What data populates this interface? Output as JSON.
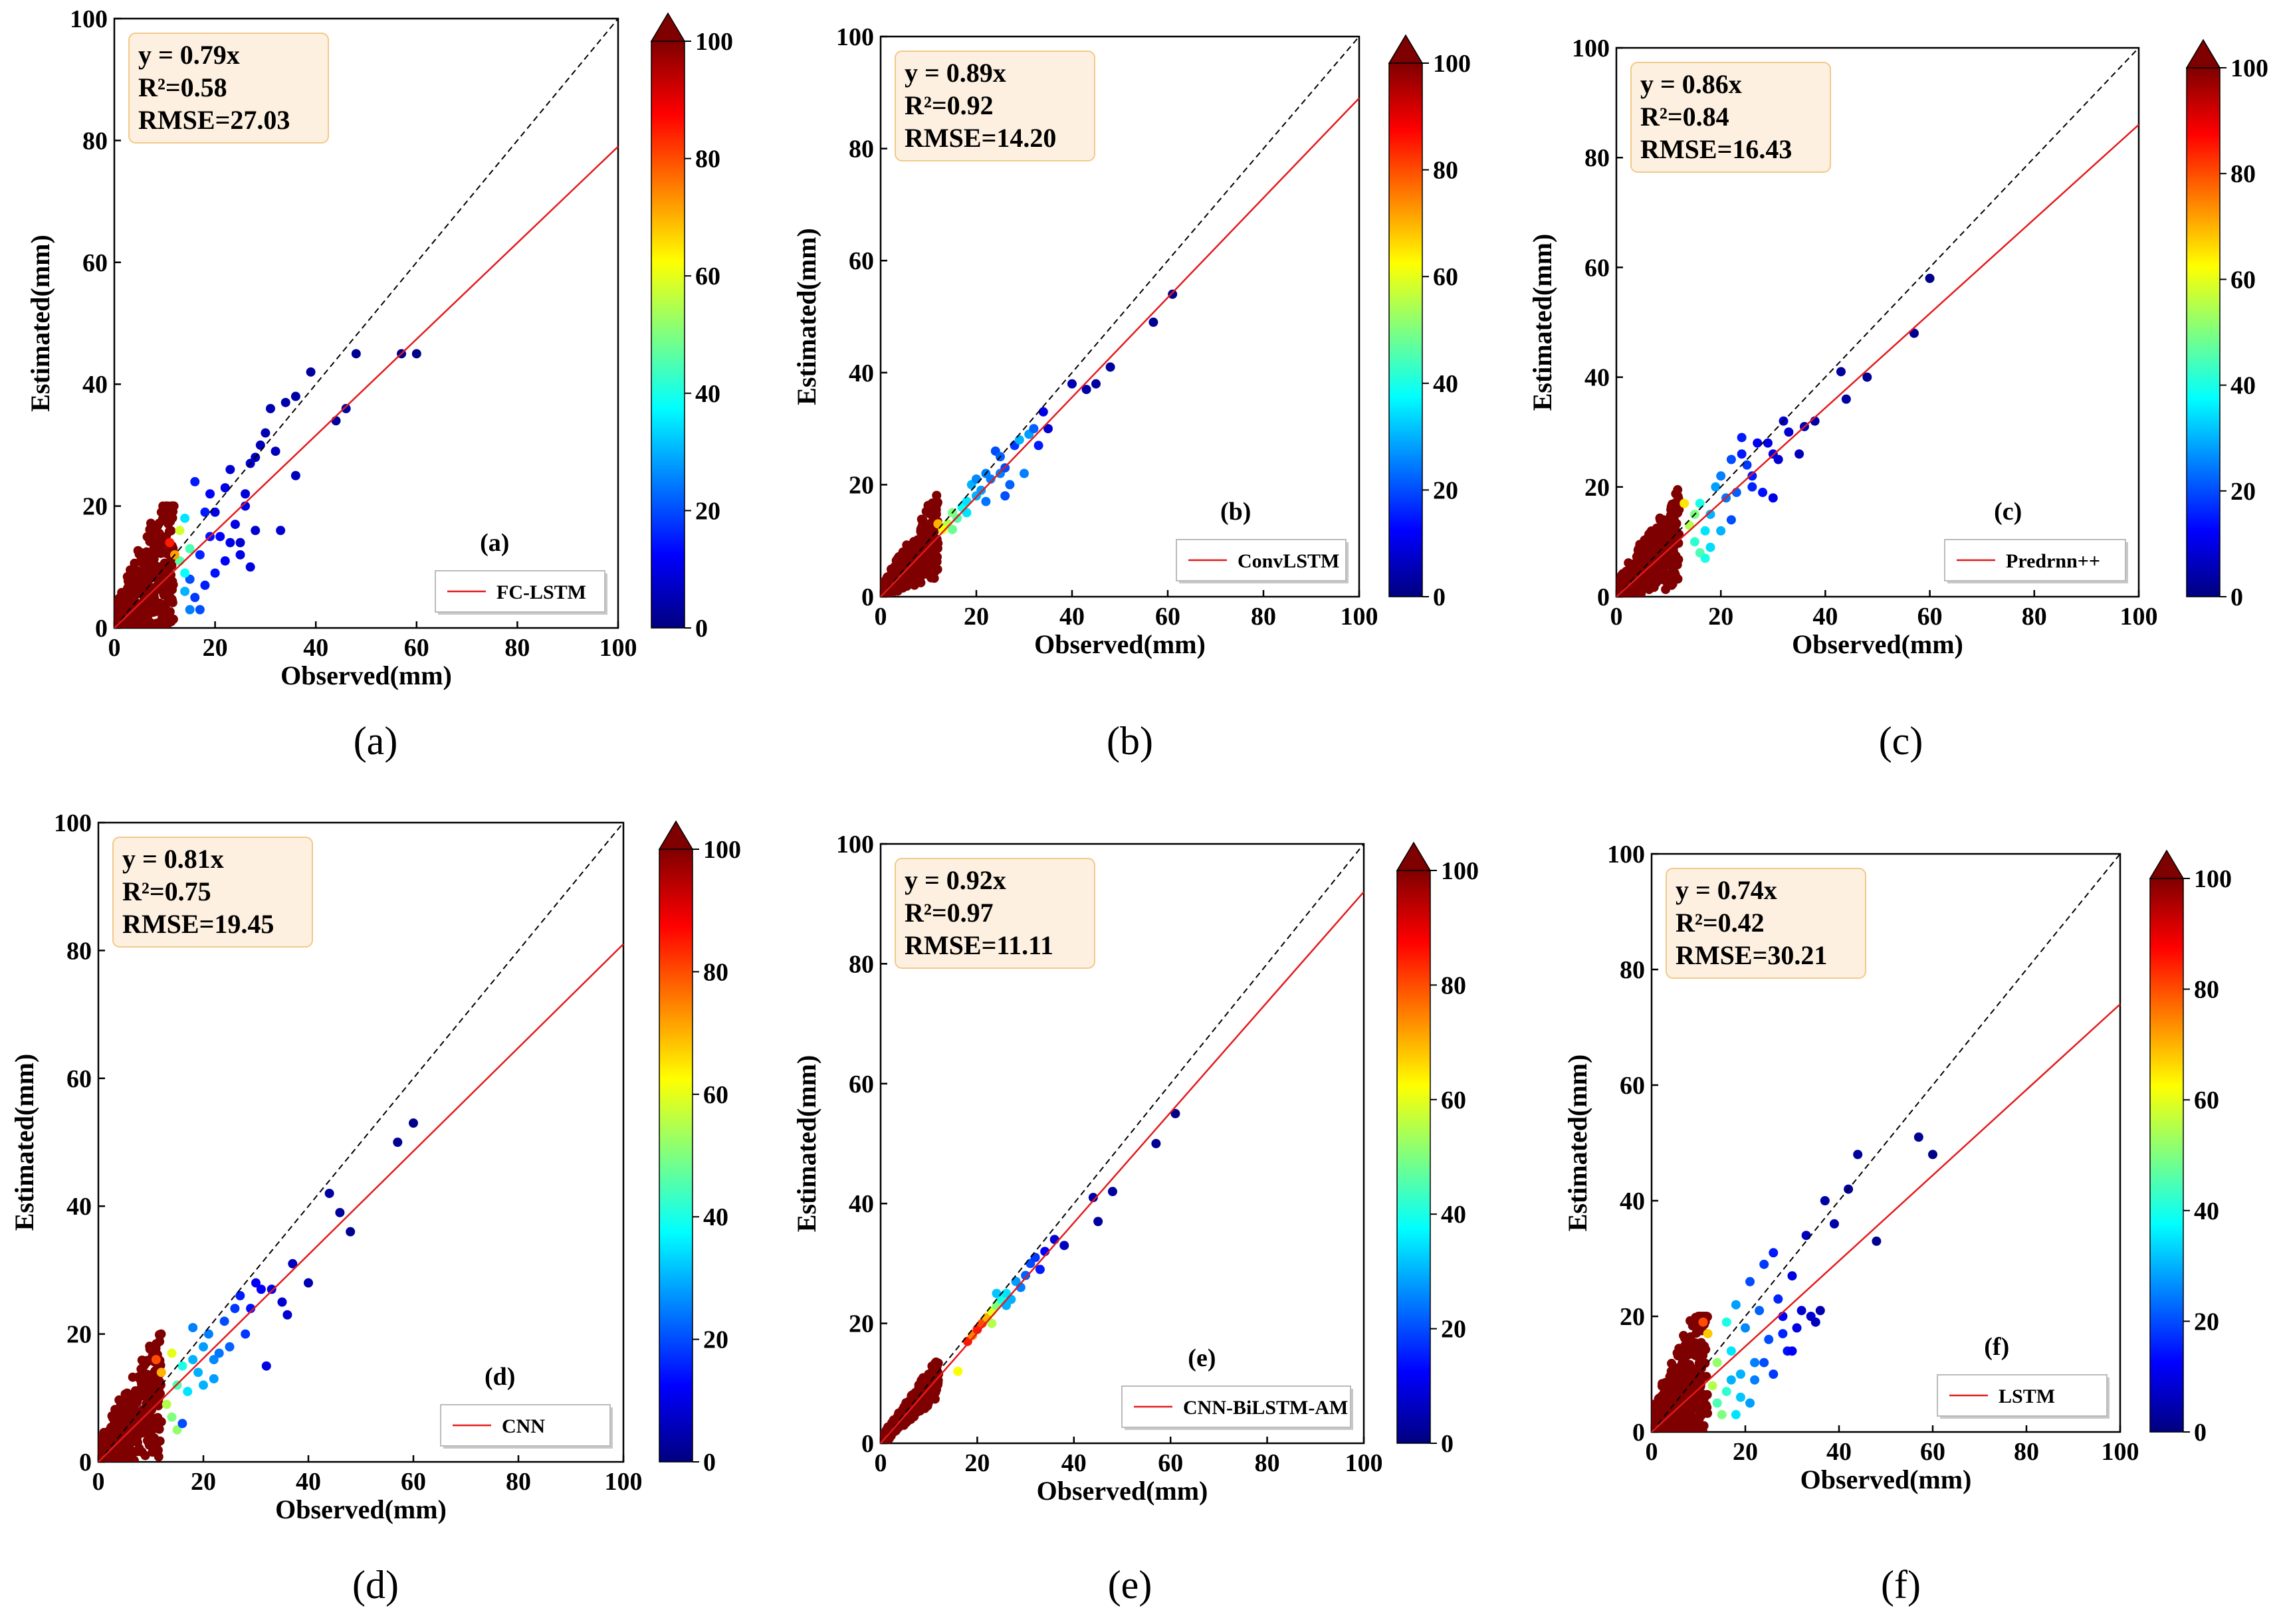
{
  "colorbar": {
    "ticks": [
      "0",
      "20",
      "40",
      "60",
      "80",
      "100"
    ],
    "stops": [
      "#00007f",
      "#0000ff",
      "#007fff",
      "#00ffff",
      "#7fff7f",
      "#ffff00",
      "#ff7f00",
      "#ff0000",
      "#7f0000"
    ]
  },
  "colors": {
    "fit_line": "#e31a1c",
    "one_to_one": "#000000",
    "stat_box_fill": "#fdf0e0",
    "stat_box_border": "#f2c98a"
  },
  "chart_data": [
    {
      "type": "scatter",
      "panel": "a",
      "caption": "(a)",
      "inner_label": "(a)",
      "legend": "FC-LSTM",
      "stats": {
        "equation": "y = 0.79x",
        "r2": "R²=0.58",
        "rmse": "RMSE=27.03"
      },
      "slope": 0.79,
      "xlabel": "Observed(mm)",
      "ylabel": "Estimated(mm)",
      "xlim": [
        0,
        100
      ],
      "ylim": [
        0,
        100
      ],
      "ticks": [
        "0",
        "20",
        "40",
        "60",
        "80",
        "100"
      ],
      "points": [
        [
          16,
          24,
          15
        ],
        [
          18,
          19,
          15
        ],
        [
          19,
          22,
          12
        ],
        [
          20,
          19,
          10
        ],
        [
          21,
          15,
          12
        ],
        [
          22,
          23,
          10
        ],
        [
          23,
          26,
          8
        ],
        [
          24,
          17,
          10
        ],
        [
          25,
          14,
          8
        ],
        [
          26,
          20,
          10
        ],
        [
          27,
          27,
          8
        ],
        [
          28,
          28,
          6
        ],
        [
          29,
          30,
          6
        ],
        [
          30,
          32,
          5
        ],
        [
          31,
          36,
          5
        ],
        [
          32,
          29,
          6
        ],
        [
          33,
          16,
          8
        ],
        [
          34,
          37,
          4
        ],
        [
          36,
          38,
          4
        ],
        [
          36,
          25,
          6
        ],
        [
          39,
          42,
          3
        ],
        [
          44,
          34,
          3
        ],
        [
          46,
          36,
          3
        ],
        [
          48,
          45,
          2
        ],
        [
          57,
          45,
          1
        ],
        [
          60,
          45,
          1
        ],
        [
          25,
          12,
          10
        ],
        [
          22,
          11,
          12
        ],
        [
          27,
          10,
          10
        ],
        [
          18,
          7,
          15
        ],
        [
          16,
          5,
          18
        ],
        [
          17,
          3,
          20
        ],
        [
          28,
          16,
          8
        ],
        [
          20,
          9,
          14
        ],
        [
          23,
          14,
          10
        ],
        [
          26,
          22,
          9
        ],
        [
          17,
          12,
          16
        ],
        [
          19,
          15,
          14
        ],
        [
          15,
          8,
          20
        ],
        [
          15,
          3,
          25
        ],
        [
          14,
          9,
          38
        ],
        [
          13,
          11,
          46
        ],
        [
          14,
          18,
          35
        ],
        [
          13,
          16,
          58
        ],
        [
          12,
          12,
          72
        ],
        [
          11,
          14,
          85
        ],
        [
          15,
          13,
          45
        ],
        [
          14,
          6,
          30
        ]
      ]
    },
    {
      "type": "scatter",
      "panel": "b",
      "caption": "(b)",
      "inner_label": "(b)",
      "legend": "ConvLSTM",
      "stats": {
        "equation": "y = 0.89x",
        "r2": "R²=0.92",
        "rmse": "RMSE=14.20"
      },
      "slope": 0.89,
      "xlabel": "Observed(mm)",
      "ylabel": "Estimated(mm)",
      "xlim": [
        0,
        100
      ],
      "ylim": [
        0,
        100
      ],
      "ticks": [
        "0",
        "20",
        "40",
        "60",
        "80",
        "100"
      ],
      "points": [
        [
          16,
          14,
          45
        ],
        [
          17,
          16,
          38
        ],
        [
          18,
          17,
          35
        ],
        [
          19,
          20,
          30
        ],
        [
          20,
          18,
          30
        ],
        [
          21,
          19,
          28
        ],
        [
          22,
          22,
          25
        ],
        [
          23,
          21,
          25
        ],
        [
          24,
          26,
          20
        ],
        [
          25,
          22,
          25
        ],
        [
          26,
          23,
          20
        ],
        [
          27,
          20,
          22
        ],
        [
          28,
          27,
          18
        ],
        [
          29,
          28,
          30
        ],
        [
          30,
          22,
          25
        ],
        [
          31,
          29,
          28
        ],
        [
          32,
          30,
          22
        ],
        [
          33,
          27,
          15
        ],
        [
          34,
          33,
          10
        ],
        [
          35,
          30,
          8
        ],
        [
          40,
          38,
          5
        ],
        [
          43,
          37,
          4
        ],
        [
          45,
          38,
          3
        ],
        [
          48,
          41,
          3
        ],
        [
          57,
          49,
          2
        ],
        [
          61,
          54,
          1
        ],
        [
          14,
          13,
          55
        ],
        [
          15,
          15,
          50
        ],
        [
          13,
          12,
          62
        ],
        [
          12,
          13,
          70
        ],
        [
          18,
          15,
          35
        ],
        [
          20,
          21,
          26
        ],
        [
          22,
          17,
          24
        ],
        [
          25,
          25,
          22
        ],
        [
          26,
          18,
          20
        ],
        [
          15,
          12,
          48
        ]
      ]
    },
    {
      "type": "scatter",
      "panel": "c",
      "caption": "(c)",
      "inner_label": "(c)",
      "legend": "Predrnn++",
      "stats": {
        "equation": "y = 0.86x",
        "r2": "R²=0.84",
        "rmse": "RMSE=16.43"
      },
      "slope": 0.86,
      "xlabel": "Observed(mm)",
      "ylabel": "Estimated(mm)",
      "xlim": [
        0,
        100
      ],
      "ylim": [
        0,
        100
      ],
      "ticks": [
        "0",
        "20",
        "40",
        "60",
        "80",
        "100"
      ],
      "points": [
        [
          16,
          17,
          40
        ],
        [
          17,
          12,
          35
        ],
        [
          18,
          15,
          30
        ],
        [
          19,
          20,
          28
        ],
        [
          20,
          22,
          25
        ],
        [
          21,
          18,
          24
        ],
        [
          22,
          25,
          20
        ],
        [
          23,
          19,
          22
        ],
        [
          24,
          26,
          15
        ],
        [
          25,
          24,
          18
        ],
        [
          26,
          22,
          15
        ],
        [
          27,
          28,
          12
        ],
        [
          28,
          19,
          14
        ],
        [
          29,
          28,
          10
        ],
        [
          30,
          18,
          10
        ],
        [
          31,
          25,
          8
        ],
        [
          32,
          32,
          8
        ],
        [
          33,
          30,
          8
        ],
        [
          35,
          26,
          6
        ],
        [
          36,
          31,
          5
        ],
        [
          38,
          32,
          4
        ],
        [
          43,
          41,
          3
        ],
        [
          44,
          36,
          3
        ],
        [
          48,
          40,
          2
        ],
        [
          57,
          48,
          2
        ],
        [
          60,
          58,
          1
        ],
        [
          14,
          13,
          55
        ],
        [
          15,
          10,
          42
        ],
        [
          16,
          8,
          45
        ],
        [
          17,
          7,
          40
        ],
        [
          13,
          17,
          65
        ],
        [
          15,
          15,
          50
        ],
        [
          18,
          9,
          34
        ],
        [
          20,
          12,
          30
        ],
        [
          24,
          29,
          15
        ],
        [
          26,
          20,
          16
        ],
        [
          22,
          14,
          20
        ],
        [
          30,
          26,
          10
        ]
      ]
    },
    {
      "type": "scatter",
      "panel": "d",
      "caption": "(d)",
      "inner_label": "(d)",
      "legend": "CNN",
      "stats": {
        "equation": "y = 0.81x",
        "r2": "R²=0.75",
        "rmse": "RMSE=19.45"
      },
      "slope": 0.81,
      "xlabel": "Observed(mm)",
      "ylabel": "Estimated(mm)",
      "xlim": [
        0,
        100
      ],
      "ylim": [
        0,
        100
      ],
      "ticks": [
        "0",
        "20",
        "40",
        "60",
        "80",
        "100"
      ],
      "points": [
        [
          14,
          17,
          60
        ],
        [
          15,
          12,
          45
        ],
        [
          16,
          15,
          40
        ],
        [
          17,
          11,
          35
        ],
        [
          18,
          21,
          25
        ],
        [
          19,
          14,
          30
        ],
        [
          20,
          18,
          28
        ],
        [
          21,
          20,
          25
        ],
        [
          22,
          13,
          28
        ],
        [
          23,
          17,
          24
        ],
        [
          24,
          22,
          20
        ],
        [
          25,
          18,
          22
        ],
        [
          26,
          24,
          18
        ],
        [
          27,
          26,
          15
        ],
        [
          28,
          20,
          18
        ],
        [
          29,
          24,
          14
        ],
        [
          30,
          28,
          12
        ],
        [
          31,
          27,
          12
        ],
        [
          32,
          15,
          10
        ],
        [
          33,
          27,
          10
        ],
        [
          35,
          25,
          8
        ],
        [
          36,
          23,
          8
        ],
        [
          37,
          31,
          6
        ],
        [
          40,
          28,
          5
        ],
        [
          44,
          42,
          3
        ],
        [
          46,
          39,
          3
        ],
        [
          48,
          36,
          2
        ],
        [
          57,
          50,
          2
        ],
        [
          60,
          53,
          1
        ],
        [
          13,
          9,
          55
        ],
        [
          14,
          7,
          50
        ],
        [
          15,
          5,
          52
        ],
        [
          16,
          6,
          20
        ],
        [
          12,
          14,
          70
        ],
        [
          11,
          16,
          80
        ],
        [
          18,
          16,
          30
        ],
        [
          20,
          12,
          30
        ],
        [
          22,
          16,
          26
        ]
      ]
    },
    {
      "type": "scatter",
      "panel": "e",
      "caption": "(e)",
      "inner_label": "(e)",
      "legend": "CNN-BiLSTM-AM",
      "stats": {
        "equation": "y = 0.92x",
        "r2": "R²=0.97",
        "rmse": "RMSE=11.11"
      },
      "slope": 0.92,
      "xlabel": "Observed(mm)",
      "ylabel": "Estimated(mm)",
      "xlim": [
        0,
        100
      ],
      "ylim": [
        0,
        100
      ],
      "ticks": [
        "0",
        "20",
        "40",
        "60",
        "80",
        "100"
      ],
      "points": [
        [
          16,
          12,
          62
        ],
        [
          18,
          17,
          85
        ],
        [
          19,
          18,
          75
        ],
        [
          20,
          19,
          85
        ],
        [
          21,
          20,
          80
        ],
        [
          22,
          21,
          70
        ],
        [
          23,
          22,
          60
        ],
        [
          24,
          23,
          50
        ],
        [
          25,
          24,
          40
        ],
        [
          26,
          25,
          35
        ],
        [
          27,
          24,
          30
        ],
        [
          28,
          27,
          28
        ],
        [
          29,
          26,
          25
        ],
        [
          30,
          28,
          22
        ],
        [
          31,
          30,
          20
        ],
        [
          32,
          31,
          18
        ],
        [
          33,
          29,
          15
        ],
        [
          34,
          32,
          12
        ],
        [
          36,
          34,
          8
        ],
        [
          38,
          33,
          6
        ],
        [
          44,
          41,
          4
        ],
        [
          45,
          37,
          3
        ],
        [
          48,
          42,
          3
        ],
        [
          57,
          50,
          2
        ],
        [
          61,
          55,
          1
        ],
        [
          24,
          25,
          32
        ],
        [
          26,
          23,
          30
        ],
        [
          23,
          20,
          55
        ]
      ]
    },
    {
      "type": "scatter",
      "panel": "f",
      "caption": "(f)",
      "inner_label": "(f)",
      "legend": "LSTM",
      "stats": {
        "equation": "y = 0.74x",
        "r2": "R²=0.42",
        "rmse": "RMSE=30.21"
      },
      "slope": 0.74,
      "xlabel": "Observed(mm)",
      "ylabel": "Estimated(mm)",
      "xlim": [
        0,
        100
      ],
      "ylim": [
        0,
        100
      ],
      "ticks": [
        "0",
        "20",
        "40",
        "60",
        "80",
        "100"
      ],
      "points": [
        [
          16,
          19,
          40
        ],
        [
          17,
          14,
          35
        ],
        [
          18,
          22,
          28
        ],
        [
          19,
          10,
          30
        ],
        [
          20,
          18,
          26
        ],
        [
          21,
          26,
          20
        ],
        [
          22,
          12,
          25
        ],
        [
          23,
          21,
          22
        ],
        [
          24,
          29,
          18
        ],
        [
          25,
          16,
          20
        ],
        [
          26,
          31,
          15
        ],
        [
          27,
          23,
          16
        ],
        [
          28,
          20,
          12
        ],
        [
          29,
          14,
          14
        ],
        [
          30,
          27,
          10
        ],
        [
          31,
          18,
          10
        ],
        [
          32,
          21,
          8
        ],
        [
          33,
          34,
          6
        ],
        [
          34,
          20,
          8
        ],
        [
          35,
          19,
          6
        ],
        [
          36,
          21,
          5
        ],
        [
          37,
          40,
          4
        ],
        [
          39,
          36,
          4
        ],
        [
          42,
          42,
          3
        ],
        [
          44,
          48,
          3
        ],
        [
          48,
          33,
          2
        ],
        [
          57,
          51,
          2
        ],
        [
          60,
          48,
          1
        ],
        [
          14,
          5,
          45
        ],
        [
          15,
          3,
          50
        ],
        [
          16,
          7,
          42
        ],
        [
          13,
          8,
          55
        ],
        [
          14,
          12,
          52
        ],
        [
          12,
          17,
          68
        ],
        [
          11,
          19,
          80
        ],
        [
          17,
          9,
          30
        ],
        [
          19,
          6,
          32
        ],
        [
          22,
          9,
          25
        ],
        [
          24,
          12,
          20
        ],
        [
          26,
          10,
          18
        ],
        [
          28,
          17,
          16
        ],
        [
          30,
          14,
          12
        ],
        [
          21,
          5,
          28
        ],
        [
          18,
          3,
          35
        ]
      ]
    }
  ]
}
